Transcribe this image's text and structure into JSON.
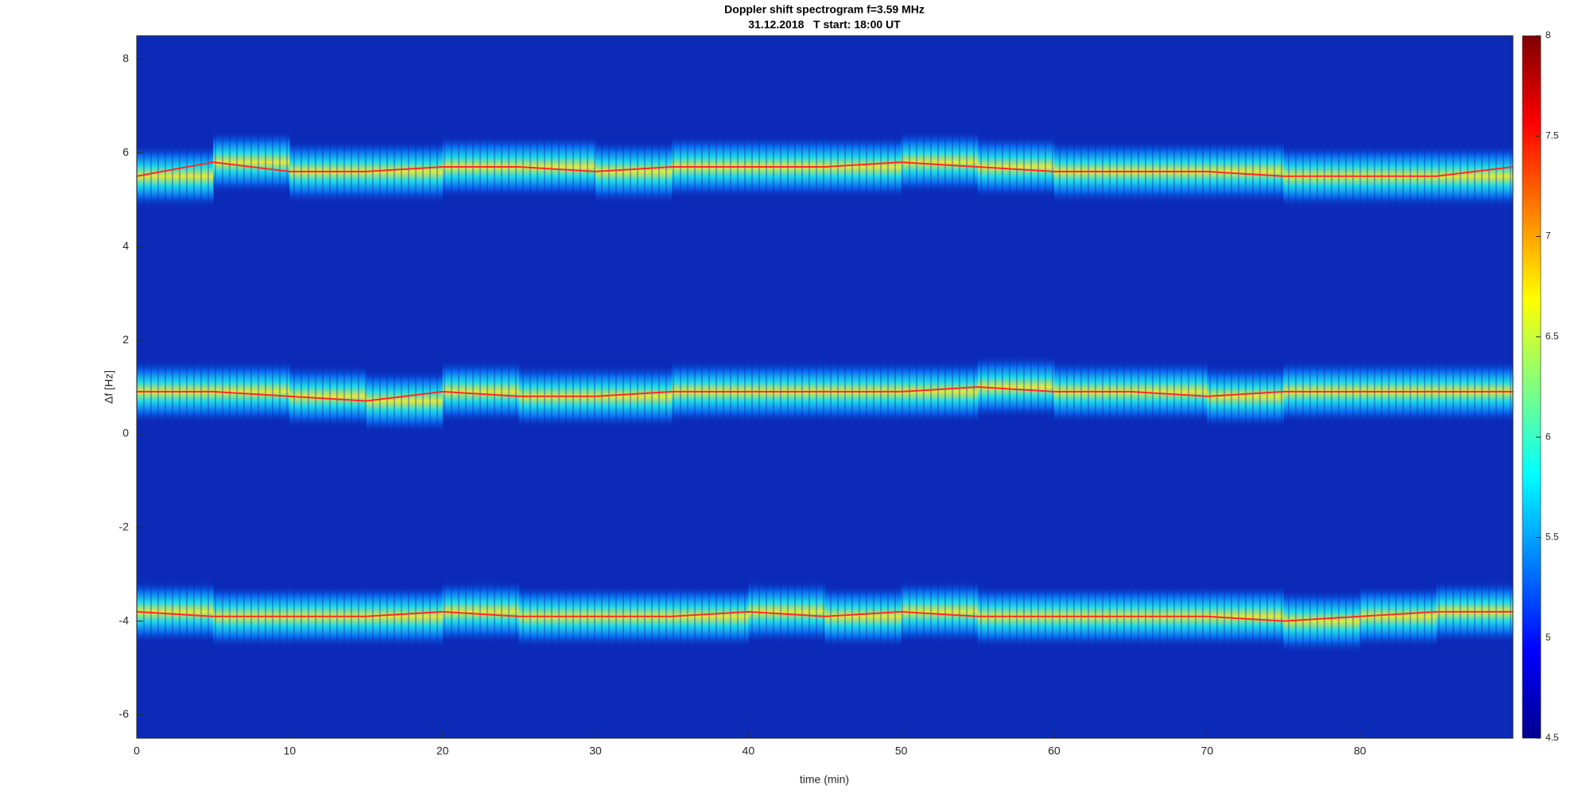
{
  "chart_data": {
    "type": "spectrogram",
    "title": "Doppler shift spectrogram f=3.59 MHz",
    "subtitle": "31.12.2018   T start: 18:00 UT",
    "xlabel": "time (min)",
    "ylabel": "Δf [Hz]",
    "xlim": [
      0,
      90
    ],
    "xticks": [
      0,
      10,
      20,
      30,
      40,
      50,
      60,
      70,
      80
    ],
    "ylim": [
      -6.5,
      8.5
    ],
    "yticks": [
      -6,
      -4,
      -2,
      0,
      2,
      4,
      6,
      8
    ],
    "clim": [
      4.5,
      8
    ],
    "cticks": [
      4.5,
      5,
      5.5,
      6,
      6.5,
      7,
      7.5,
      8
    ],
    "x": [
      0,
      5,
      10,
      15,
      20,
      25,
      30,
      35,
      40,
      45,
      50,
      55,
      60,
      65,
      70,
      75,
      80,
      85,
      90
    ],
    "series": [
      {
        "color": "#ff2a2a",
        "values": [
          5.5,
          5.8,
          5.6,
          5.6,
          5.7,
          5.7,
          5.6,
          5.7,
          5.7,
          5.7,
          5.8,
          5.7,
          5.6,
          5.6,
          5.6,
          5.5,
          5.5,
          5.5,
          5.7
        ]
      },
      {
        "color": "#ff2a2a",
        "values": [
          0.9,
          0.9,
          0.8,
          0.7,
          0.9,
          0.8,
          0.8,
          0.9,
          0.9,
          0.9,
          0.9,
          1.0,
          0.9,
          0.9,
          0.8,
          0.9,
          0.9,
          0.9,
          0.9
        ]
      },
      {
        "color": "#ff2a2a",
        "values": [
          -3.8,
          -3.9,
          -3.9,
          -3.9,
          -3.8,
          -3.9,
          -3.9,
          -3.9,
          -3.8,
          -3.9,
          -3.8,
          -3.9,
          -3.9,
          -3.9,
          -3.9,
          -4.0,
          -3.9,
          -3.8,
          -3.8
        ]
      }
    ]
  }
}
